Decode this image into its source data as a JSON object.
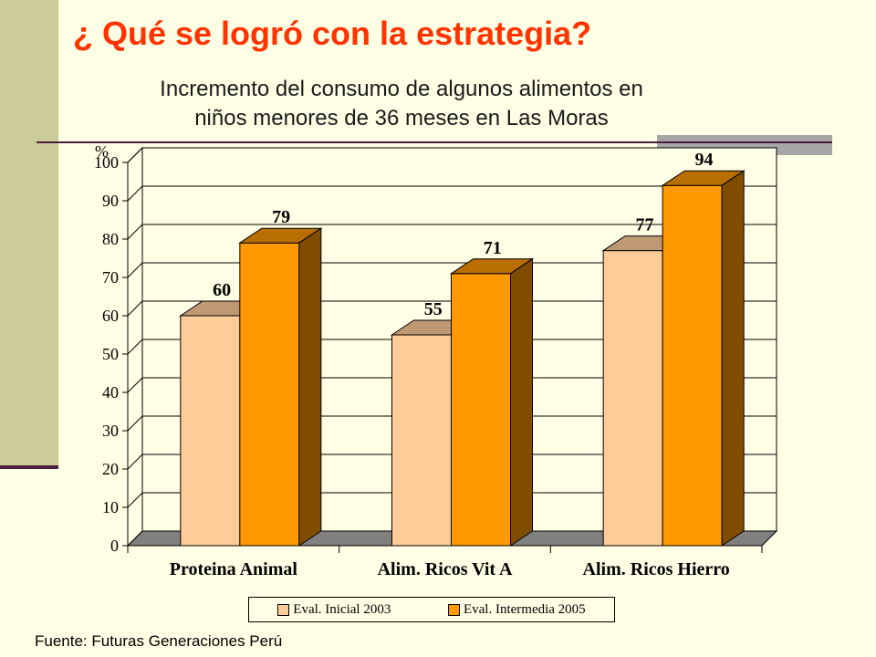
{
  "slide": {
    "title": "¿ Qué se logró con la estrategia?",
    "source": "Fuente:  Futuras Generaciones Perú"
  },
  "chart_data": {
    "type": "bar",
    "title": "Incremento del consumo de algunos alimentos en niños menores de 36 meses en Las Moras",
    "title_lines": [
      "Incremento del consumo de algunos alimentos en",
      "niños menores de 36 meses en Las Moras"
    ],
    "ylabel": "%",
    "xlabel": "",
    "ylim": [
      0,
      100
    ],
    "yticks": [
      0,
      10,
      20,
      30,
      40,
      50,
      60,
      70,
      80,
      90,
      100
    ],
    "grid": true,
    "legend_position": "bottom",
    "categories": [
      "Proteina Animal",
      "Alim. Ricos Vit A",
      "Alim. Ricos Hierro"
    ],
    "series": [
      {
        "name": "Eval. Inicial 2003",
        "values": [
          60,
          55,
          77
        ],
        "color": "#FFCC99"
      },
      {
        "name": "Eval. Intermedia 2005",
        "values": [
          79,
          71,
          94
        ],
        "color": "#FF9900"
      }
    ]
  },
  "colors": {
    "title": "#FF3300",
    "background": "#FFFFE5",
    "sidebar": "#CCCC99",
    "rule": "#4B1C3C"
  }
}
